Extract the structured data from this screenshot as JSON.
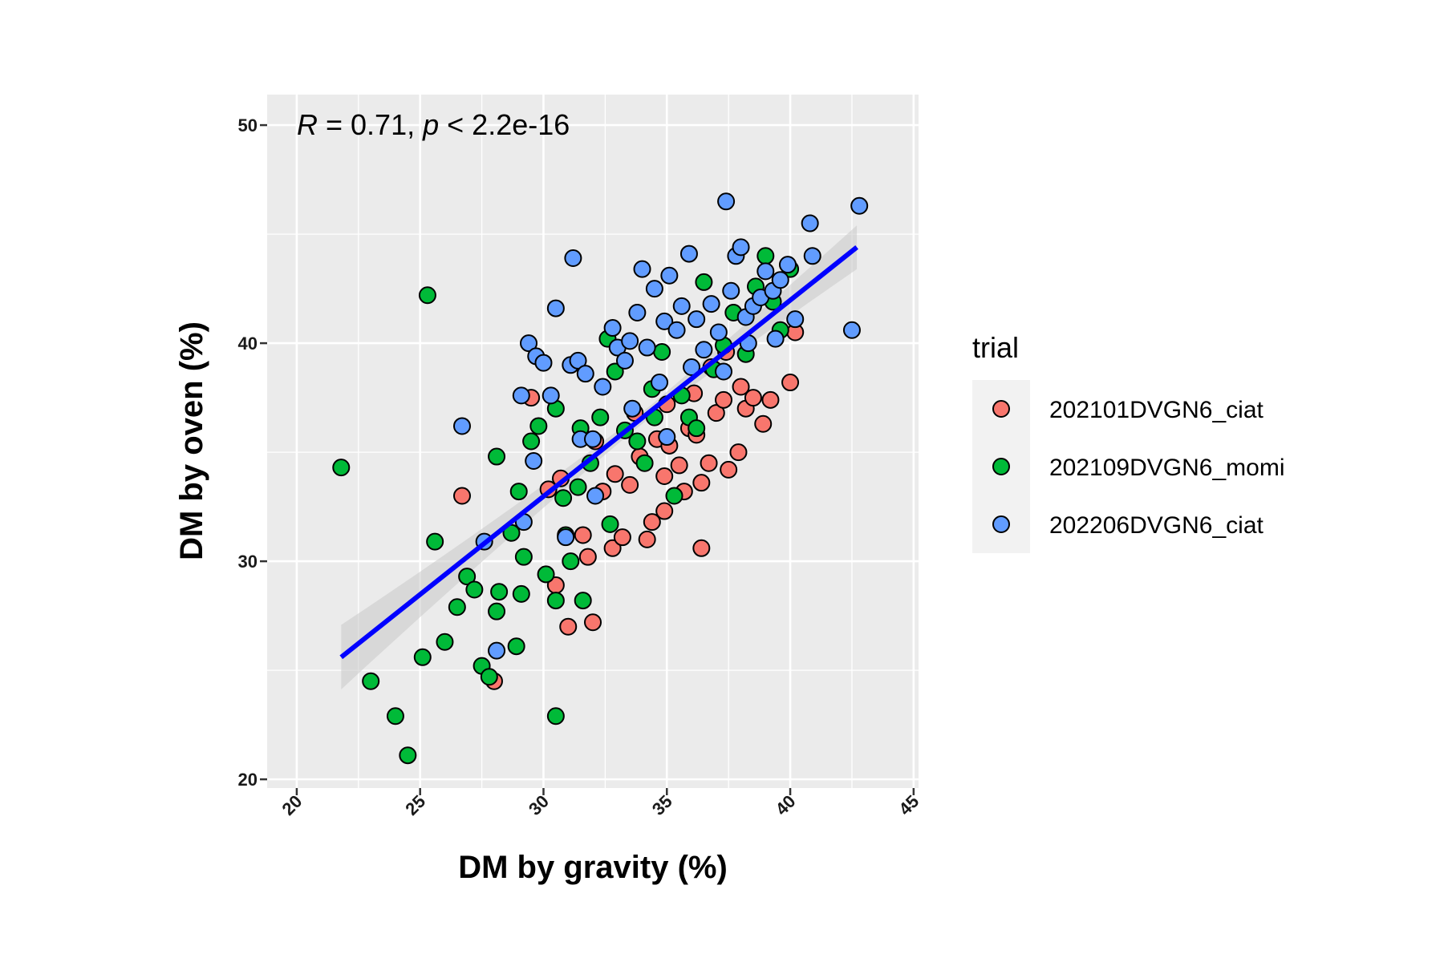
{
  "chart_data": {
    "type": "scatter",
    "xlabel": "DM by gravity (%)",
    "ylabel": "DM by oven (%)",
    "xlim": [
      18.8,
      45.2
    ],
    "ylim": [
      19.6,
      51.4
    ],
    "x_ticks": [
      "20",
      "25",
      "30",
      "35",
      "40",
      "45"
    ],
    "y_ticks": [
      "20",
      "30",
      "40",
      "50"
    ],
    "grid": true,
    "annotation": {
      "r_symbol": "R",
      "r_text": " = 0.71, ",
      "p_symbol": "p",
      "p_text": " < 2.2e-16"
    },
    "legend": {
      "title": "trial",
      "position": "right"
    },
    "regression": {
      "x": [
        21.8,
        42.7
      ],
      "y": [
        25.6,
        44.4
      ],
      "color": "#0000FF",
      "band_color": "#C9C9C9"
    },
    "colors": {
      "panel": "#EBEBEB",
      "grid": "#FFFFFF",
      "point_edge": "#000000"
    },
    "series": [
      {
        "name": "202101DVGN6_ciat",
        "color": "#F8766D",
        "points": [
          [
            26.7,
            33.0
          ],
          [
            28.0,
            24.5
          ],
          [
            29.5,
            37.5
          ],
          [
            30.2,
            33.3
          ],
          [
            30.5,
            28.9
          ],
          [
            31.0,
            27.0
          ],
          [
            31.8,
            30.2
          ],
          [
            32.0,
            27.2
          ],
          [
            32.1,
            35.5
          ],
          [
            32.4,
            33.2
          ],
          [
            32.8,
            30.6
          ],
          [
            33.2,
            31.1
          ],
          [
            33.5,
            33.5
          ],
          [
            33.9,
            34.8
          ],
          [
            34.2,
            31.0
          ],
          [
            34.4,
            31.8
          ],
          [
            34.6,
            35.6
          ],
          [
            34.9,
            33.9
          ],
          [
            35.1,
            35.3
          ],
          [
            35.5,
            34.4
          ],
          [
            35.7,
            33.2
          ],
          [
            35.9,
            36.1
          ],
          [
            36.2,
            35.8
          ],
          [
            36.4,
            33.6
          ],
          [
            36.4,
            30.6
          ],
          [
            36.7,
            34.5
          ],
          [
            37.0,
            36.8
          ],
          [
            37.3,
            37.4
          ],
          [
            37.5,
            34.2
          ],
          [
            37.9,
            35.0
          ],
          [
            38.2,
            37.0
          ],
          [
            38.5,
            37.5
          ],
          [
            38.9,
            36.3
          ],
          [
            39.2,
            37.4
          ],
          [
            40.0,
            38.2
          ],
          [
            40.2,
            40.5
          ],
          [
            36.8,
            38.9
          ],
          [
            35.0,
            37.2
          ],
          [
            33.7,
            36.8
          ],
          [
            34.9,
            32.3
          ],
          [
            32.9,
            34.0
          ],
          [
            36.1,
            37.7
          ],
          [
            38.0,
            38.0
          ],
          [
            37.4,
            39.6
          ],
          [
            31.6,
            31.2
          ],
          [
            30.7,
            33.8
          ]
        ]
      },
      {
        "name": "202109DVGN6_momi",
        "color": "#00BA38",
        "points": [
          [
            21.8,
            34.3
          ],
          [
            23.0,
            24.5
          ],
          [
            24.0,
            22.9
          ],
          [
            24.5,
            21.1
          ],
          [
            25.1,
            25.6
          ],
          [
            25.3,
            42.2
          ],
          [
            25.6,
            30.9
          ],
          [
            26.0,
            26.3
          ],
          [
            26.5,
            27.9
          ],
          [
            26.9,
            29.3
          ],
          [
            27.2,
            28.7
          ],
          [
            27.5,
            25.2
          ],
          [
            27.8,
            24.7
          ],
          [
            28.1,
            27.7
          ],
          [
            28.2,
            28.6
          ],
          [
            28.1,
            34.8
          ],
          [
            28.7,
            31.3
          ],
          [
            28.9,
            26.1
          ],
          [
            29.1,
            28.5
          ],
          [
            29.0,
            33.2
          ],
          [
            29.5,
            35.5
          ],
          [
            29.8,
            36.2
          ],
          [
            30.1,
            29.4
          ],
          [
            30.5,
            28.2
          ],
          [
            30.5,
            22.9
          ],
          [
            30.5,
            37.0
          ],
          [
            30.8,
            32.9
          ],
          [
            31.1,
            30.0
          ],
          [
            31.4,
            33.4
          ],
          [
            31.5,
            36.1
          ],
          [
            31.6,
            28.2
          ],
          [
            31.9,
            34.5
          ],
          [
            32.3,
            36.6
          ],
          [
            32.7,
            31.7
          ],
          [
            32.9,
            38.7
          ],
          [
            33.3,
            36.0
          ],
          [
            33.8,
            35.5
          ],
          [
            34.1,
            34.5
          ],
          [
            34.4,
            37.9
          ],
          [
            34.8,
            39.6
          ],
          [
            35.3,
            33.0
          ],
          [
            35.6,
            37.6
          ],
          [
            35.9,
            36.6
          ],
          [
            36.2,
            36.1
          ],
          [
            36.5,
            42.8
          ],
          [
            36.9,
            38.8
          ],
          [
            37.3,
            39.9
          ],
          [
            37.7,
            41.4
          ],
          [
            38.2,
            39.5
          ],
          [
            38.6,
            42.6
          ],
          [
            39.0,
            44.0
          ],
          [
            39.3,
            41.9
          ],
          [
            39.6,
            40.6
          ],
          [
            40.0,
            43.4
          ],
          [
            29.2,
            30.2
          ],
          [
            30.9,
            31.2
          ],
          [
            32.6,
            40.2
          ],
          [
            34.5,
            36.6
          ]
        ]
      },
      {
        "name": "202206DVGN6_ciat",
        "color": "#619CFF",
        "points": [
          [
            26.7,
            36.2
          ],
          [
            27.6,
            30.9
          ],
          [
            28.1,
            25.9
          ],
          [
            29.1,
            37.6
          ],
          [
            29.4,
            40.0
          ],
          [
            29.7,
            39.4
          ],
          [
            30.0,
            39.1
          ],
          [
            29.6,
            34.6
          ],
          [
            30.3,
            37.6
          ],
          [
            30.5,
            41.6
          ],
          [
            31.1,
            39.0
          ],
          [
            31.2,
            43.9
          ],
          [
            31.4,
            39.2
          ],
          [
            31.5,
            35.6
          ],
          [
            31.7,
            38.6
          ],
          [
            32.1,
            33.0
          ],
          [
            32.4,
            38.0
          ],
          [
            32.8,
            40.7
          ],
          [
            33.0,
            39.8
          ],
          [
            33.3,
            39.2
          ],
          [
            33.5,
            40.1
          ],
          [
            33.8,
            41.4
          ],
          [
            34.0,
            43.4
          ],
          [
            34.2,
            39.8
          ],
          [
            34.5,
            42.5
          ],
          [
            34.7,
            38.2
          ],
          [
            34.9,
            41.0
          ],
          [
            35.1,
            43.1
          ],
          [
            35.4,
            40.6
          ],
          [
            35.6,
            41.7
          ],
          [
            35.9,
            44.1
          ],
          [
            36.2,
            41.1
          ],
          [
            36.5,
            39.7
          ],
          [
            36.8,
            41.8
          ],
          [
            37.1,
            40.5
          ],
          [
            37.4,
            46.5
          ],
          [
            37.6,
            42.4
          ],
          [
            37.8,
            44.0
          ],
          [
            38.0,
            44.4
          ],
          [
            38.2,
            41.2
          ],
          [
            38.5,
            41.7
          ],
          [
            38.8,
            42.1
          ],
          [
            39.0,
            43.3
          ],
          [
            39.3,
            42.4
          ],
          [
            39.6,
            42.9
          ],
          [
            39.9,
            43.6
          ],
          [
            40.2,
            41.1
          ],
          [
            40.8,
            45.5
          ],
          [
            40.9,
            44.0
          ],
          [
            42.5,
            40.6
          ],
          [
            42.8,
            46.3
          ],
          [
            30.9,
            31.1
          ],
          [
            32.0,
            35.6
          ],
          [
            33.6,
            37.0
          ],
          [
            35.0,
            35.7
          ],
          [
            36.0,
            38.9
          ],
          [
            37.3,
            38.7
          ],
          [
            38.3,
            40.0
          ],
          [
            39.4,
            40.2
          ],
          [
            29.2,
            31.8
          ]
        ]
      }
    ]
  }
}
